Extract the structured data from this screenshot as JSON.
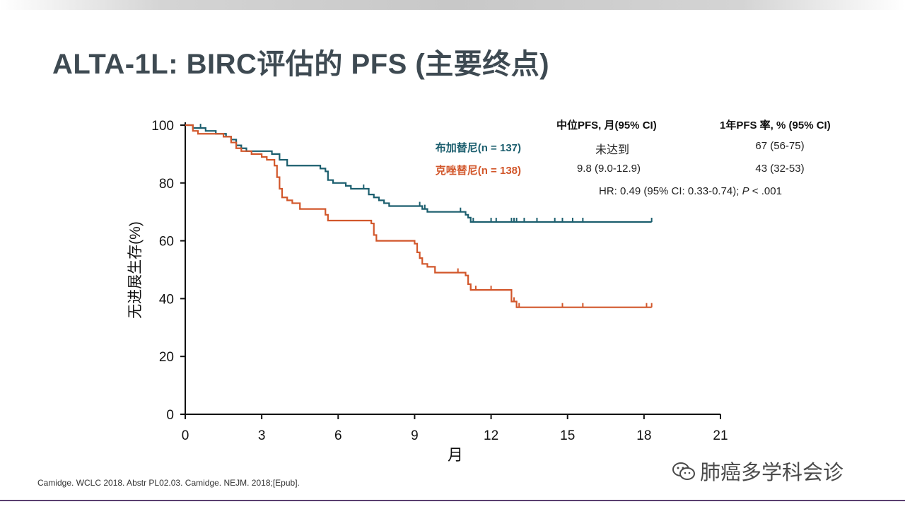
{
  "slide": {
    "title": "ALTA-1L: BIRC评估的 PFS (主要终点)",
    "citation": "Camidge. WCLC 2018. Abstr PL02.03. Camidge. NEJM. 2018;[Epub].",
    "watermark": "肺癌多学科会诊",
    "watermark_icon": "wechat-icon"
  },
  "table": {
    "col_median": "中位PFS, 月(95% CI)",
    "col_1yr": "1年PFS 率, % (95% CI)",
    "rows": [
      {
        "label": "布加替尼(n = 137)",
        "median": "未达到",
        "one_year": "67 (56-75)"
      },
      {
        "label": "克唑替尼(n = 138)",
        "median": "9.8 (9.0-12.9)",
        "one_year": "43 (32-53)"
      }
    ],
    "hr_prefix": "HR: 0.49 (95% CI: 0.33-0.74); ",
    "hr_p": "P",
    "hr_suffix": " < .001"
  },
  "chart_data": {
    "type": "line",
    "xlabel": "月",
    "ylabel": "无进展生存(%)",
    "xlim": [
      0,
      21
    ],
    "ylim": [
      0,
      100
    ],
    "xticks": [
      0,
      3,
      6,
      9,
      12,
      15,
      18,
      21
    ],
    "yticks": [
      0,
      20,
      40,
      60,
      80,
      100
    ],
    "step": true,
    "series": [
      {
        "name": "布加替尼(n = 137)",
        "color": "#1b5e6e",
        "x": [
          0,
          0.3,
          0.8,
          1.2,
          1.6,
          1.8,
          2.0,
          2.2,
          2.4,
          2.6,
          2.8,
          3.0,
          3.4,
          3.7,
          4.0,
          5.0,
          5.3,
          5.5,
          5.6,
          5.8,
          6.0,
          6.3,
          6.5,
          7.0,
          7.2,
          7.4,
          7.6,
          7.8,
          8.0,
          8.5,
          8.8,
          9.0,
          9.3,
          9.5,
          10.0,
          10.8,
          11.0,
          11.1,
          11.2,
          18.3
        ],
        "y": [
          100,
          99,
          98,
          97,
          96,
          95,
          93,
          92,
          91,
          91,
          91,
          91,
          90,
          88,
          86,
          86,
          85,
          84,
          81,
          80,
          80,
          79,
          78,
          78,
          76,
          75,
          74,
          73,
          72,
          72,
          72,
          72,
          71,
          70,
          70,
          70,
          69,
          68,
          66.5,
          66.5
        ],
        "censors_x": [
          0.6,
          7.0,
          9.2,
          9.4,
          10.8,
          11.3,
          12.0,
          12.2,
          12.8,
          12.9,
          13.0,
          13.3,
          13.8,
          14.5,
          14.8,
          15.2,
          15.6,
          18.3
        ]
      },
      {
        "name": "克唑替尼(n = 138)",
        "color": "#d2572b",
        "x": [
          0,
          0.3,
          0.5,
          1.5,
          1.8,
          2.0,
          2.2,
          2.6,
          3.0,
          3.2,
          3.5,
          3.6,
          3.7,
          3.8,
          4.0,
          4.2,
          4.5,
          5.0,
          5.5,
          5.6,
          6.0,
          6.5,
          7.0,
          7.3,
          7.4,
          7.5,
          8.0,
          9.0,
          9.1,
          9.2,
          9.3,
          9.5,
          9.8,
          10.5,
          11.0,
          11.1,
          11.2,
          11.5,
          12.8,
          13.0,
          18.3
        ],
        "y": [
          100,
          98,
          97,
          96,
          94,
          92,
          91,
          90,
          89,
          88,
          86,
          82,
          78,
          75,
          74,
          73,
          71,
          71,
          69,
          67,
          67,
          67,
          67,
          66,
          62,
          60,
          60,
          59,
          56,
          54,
          52,
          51,
          49,
          49,
          48,
          45,
          43,
          43,
          39,
          37,
          37
        ],
        "censors_x": [
          10.7,
          11.2,
          11.4,
          12.0,
          12.9,
          13.1,
          14.8,
          15.6,
          18.1,
          18.3
        ]
      }
    ]
  }
}
